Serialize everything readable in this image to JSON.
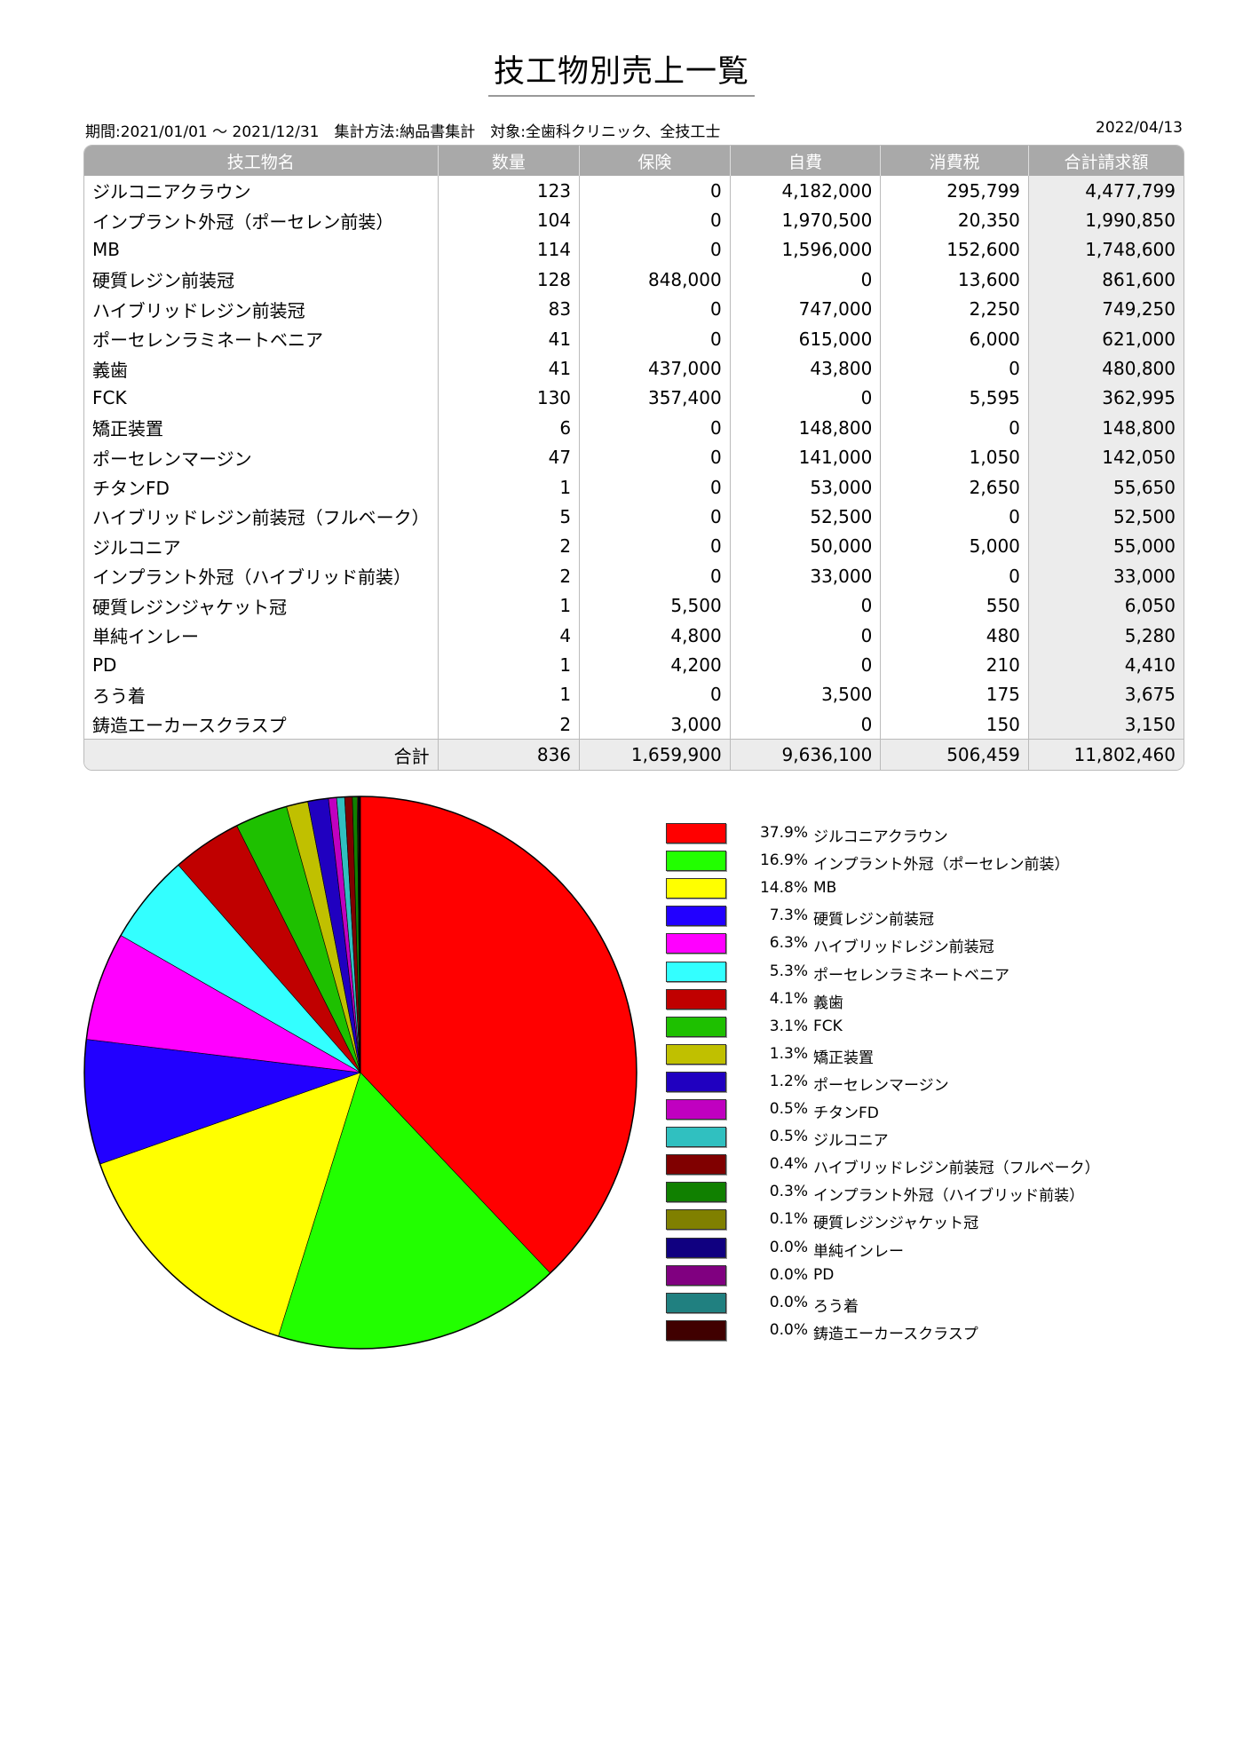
{
  "title": "技工物別売上一覧",
  "meta": "期間:2021/01/01 ～ 2021/12/31　集計方法:納品書集計　対象:全歯科クリニック、全技工士",
  "date": "2022/04/13",
  "headers": [
    "技工物名",
    "数量",
    "保険",
    "自費",
    "消費税",
    "合計請求額"
  ],
  "rows": [
    [
      "ジルコニアクラウン",
      "123",
      "0",
      "4,182,000",
      "295,799",
      "4,477,799"
    ],
    [
      "インプラント外冠（ポーセレン前装）",
      "104",
      "0",
      "1,970,500",
      "20,350",
      "1,990,850"
    ],
    [
      "MB",
      "114",
      "0",
      "1,596,000",
      "152,600",
      "1,748,600"
    ],
    [
      "硬質レジン前装冠",
      "128",
      "848,000",
      "0",
      "13,600",
      "861,600"
    ],
    [
      "ハイブリッドレジン前装冠",
      "83",
      "0",
      "747,000",
      "2,250",
      "749,250"
    ],
    [
      "ポーセレンラミネートベニア",
      "41",
      "0",
      "615,000",
      "6,000",
      "621,000"
    ],
    [
      "義歯",
      "41",
      "437,000",
      "43,800",
      "0",
      "480,800"
    ],
    [
      "FCK",
      "130",
      "357,400",
      "0",
      "5,595",
      "362,995"
    ],
    [
      "矯正装置",
      "6",
      "0",
      "148,800",
      "0",
      "148,800"
    ],
    [
      "ポーセレンマージン",
      "47",
      "0",
      "141,000",
      "1,050",
      "142,050"
    ],
    [
      "チタンFD",
      "1",
      "0",
      "53,000",
      "2,650",
      "55,650"
    ],
    [
      "ハイブリッドレジン前装冠（フルベーク）",
      "5",
      "0",
      "52,500",
      "0",
      "52,500"
    ],
    [
      "ジルコニア",
      "2",
      "0",
      "50,000",
      "5,000",
      "55,000"
    ],
    [
      "インプラント外冠（ハイブリッド前装）",
      "2",
      "0",
      "33,000",
      "0",
      "33,000"
    ],
    [
      "硬質レジンジャケット冠",
      "1",
      "5,500",
      "0",
      "550",
      "6,050"
    ],
    [
      "単純インレー",
      "4",
      "4,800",
      "0",
      "480",
      "5,280"
    ],
    [
      "PD",
      "1",
      "4,200",
      "0",
      "210",
      "4,410"
    ],
    [
      "ろう着",
      "1",
      "0",
      "3,500",
      "175",
      "3,675"
    ],
    [
      "鋳造エーカースクラスプ",
      "2",
      "3,000",
      "0",
      "150",
      "3,150"
    ]
  ],
  "total": [
    "合計",
    "836",
    "1,659,900",
    "9,636,100",
    "506,459",
    "11,802,460"
  ],
  "chart_data": {
    "type": "pie",
    "categories": [
      "ジルコニアクラウン",
      "インプラント外冠（ポーセレン前装）",
      "MB",
      "硬質レジン前装冠",
      "ハイブリッドレジン前装冠",
      "ポーセレンラミネートベニア",
      "義歯",
      "FCK",
      "矯正装置",
      "ポーセレンマージン",
      "チタンFD",
      "ジルコニア",
      "ハイブリッドレジン前装冠（フルベーク）",
      "インプラント外冠（ハイブリッド前装）",
      "硬質レジンジャケット冠",
      "単純インレー",
      "PD",
      "ろう着",
      "鋳造エーカースクラスプ"
    ],
    "values": [
      4477799,
      1990850,
      1748600,
      861600,
      749250,
      621000,
      480800,
      362995,
      148800,
      142050,
      55650,
      55000,
      52500,
      33000,
      6050,
      5280,
      4410,
      3675,
      3150
    ],
    "labels": [
      "37.9%",
      "16.9%",
      "14.8%",
      "7.3%",
      "6.3%",
      "5.3%",
      "4.1%",
      "3.1%",
      "1.3%",
      "1.2%",
      "0.5%",
      "0.5%",
      "0.4%",
      "0.3%",
      "0.1%",
      "0.0%",
      "0.0%",
      "0.0%",
      "0.0%"
    ],
    "colors": [
      "#ff0000",
      "#22ff00",
      "#ffff00",
      "#2200ff",
      "#ff00ff",
      "#33ffff",
      "#c00000",
      "#1ec000",
      "#c0c000",
      "#2000c0",
      "#c000c0",
      "#30c0c0",
      "#800000",
      "#108000",
      "#808000",
      "#100080",
      "#800080",
      "#208080",
      "#400000"
    ],
    "legend": "right"
  }
}
